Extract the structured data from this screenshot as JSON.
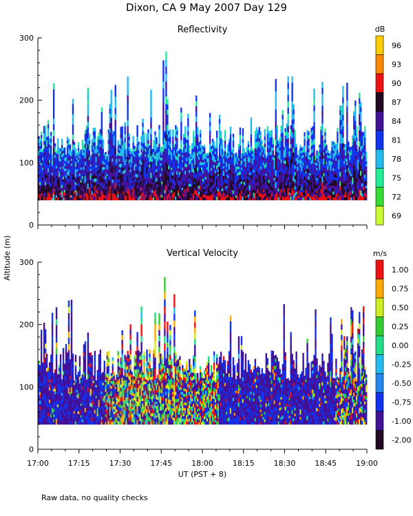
{
  "figure": {
    "title": "Dixon, CA  9 May 2007  Day 129",
    "ylabel": "Altitude (m)",
    "xlabel": "UT  (PST + 8)",
    "footnote": "Raw data, no quality checks"
  },
  "chart_data": [
    {
      "type": "heatmap",
      "title": "Reflectivity",
      "unit_label": "dB",
      "xlim": [
        "17:00",
        "19:00"
      ],
      "x_ticks": [
        "17:00",
        "17:15",
        "17:30",
        "17:45",
        "18:00",
        "18:15",
        "18:30",
        "18:45",
        "19:00"
      ],
      "ylim": [
        0,
        300
      ],
      "y_ticks": [
        "0",
        "100",
        "200",
        "300"
      ],
      "colorbar": {
        "labels": [
          "69",
          "72",
          "75",
          "78",
          "81",
          "84",
          "87",
          "90",
          "93",
          "96"
        ],
        "colors": [
          "#ccff33",
          "#33dd33",
          "#22ee99",
          "#22bbee",
          "#1133ee",
          "#441199",
          "#220a22",
          "#ee1111",
          "#ff8800",
          "#ffcc00"
        ]
      }
    },
    {
      "type": "heatmap",
      "title": "Vertical Velocity",
      "unit_label": "m/s",
      "xlim": [
        "17:00",
        "19:00"
      ],
      "x_ticks": [
        "17:00",
        "17:15",
        "17:30",
        "17:45",
        "18:00",
        "18:15",
        "18:30",
        "18:45",
        "19:00"
      ],
      "ylim": [
        0,
        300
      ],
      "y_ticks": [
        "0",
        "100",
        "200",
        "300"
      ],
      "colorbar": {
        "labels": [
          "-2.00",
          "-1.00",
          "-0.75",
          "-0.50",
          "-0.25",
          "0.00",
          "0.25",
          "0.50",
          "0.75",
          "1.00"
        ],
        "colors": [
          "#220a22",
          "#441199",
          "#1133ee",
          "#2288ee",
          "#22bbee",
          "#22dd88",
          "#33cc33",
          "#ccee22",
          "#ffaa00",
          "#ee1111"
        ]
      }
    }
  ]
}
